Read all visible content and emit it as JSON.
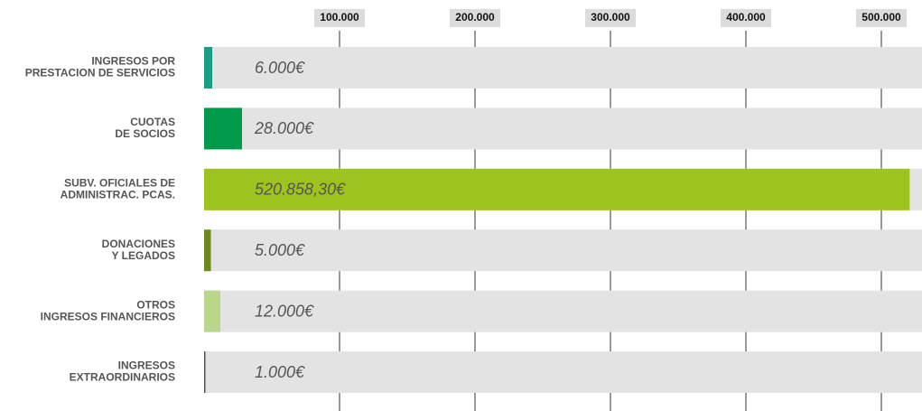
{
  "chart_data": {
    "type": "bar",
    "orientation": "horizontal",
    "categories": [
      [
        "INGRESOS POR",
        "PRESTACION DE SERVICIOS"
      ],
      [
        "CUOTAS",
        "DE SOCIOS"
      ],
      [
        "SUBV. OFICIALES DE",
        "ADMINISTRAC. PCAS."
      ],
      [
        "DONACIONES",
        "Y LEGADOS"
      ],
      [
        "OTROS",
        "INGRESOS FINANCIEROS"
      ],
      [
        "INGRESOS",
        "EXTRAORDINARIOS"
      ]
    ],
    "values": [
      6000,
      28000,
      520858.3,
      5000,
      12000,
      1000
    ],
    "value_labels": [
      "6.000€",
      "28.000€",
      "520.858,30€",
      "5.000€",
      "12.000€",
      "1.000€"
    ],
    "colors": [
      "#1b9c85",
      "#009a4a",
      "#9cc31e",
      "#6b8a1e",
      "#b8d78a",
      "#555555"
    ],
    "xlim": [
      0,
      530000
    ],
    "xticks": [
      {
        "value": 100000,
        "label": "100.000"
      },
      {
        "value": 200000,
        "label": "200.000"
      },
      {
        "value": 300000,
        "label": "300.000"
      },
      {
        "value": 400000,
        "label": "400.000"
      },
      {
        "value": 500000,
        "label": "500.000"
      }
    ],
    "grid": true
  }
}
